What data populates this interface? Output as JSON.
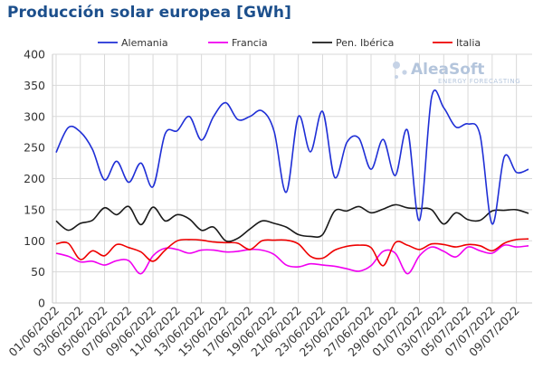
{
  "chart_data": {
    "type": "line",
    "title": "Producción solar europea [GWh]",
    "ylim": [
      0,
      400
    ],
    "yticks": [
      0,
      50,
      100,
      150,
      200,
      250,
      300,
      350,
      400
    ],
    "grid": true,
    "legend_position": "top",
    "x": [
      "01/06/2022",
      "02/06/2022",
      "03/06/2022",
      "04/06/2022",
      "05/06/2022",
      "06/06/2022",
      "07/06/2022",
      "08/06/2022",
      "09/06/2022",
      "10/06/2022",
      "11/06/2022",
      "12/06/2022",
      "13/06/2022",
      "14/06/2022",
      "15/06/2022",
      "16/06/2022",
      "17/06/2022",
      "18/06/2022",
      "19/06/2022",
      "20/06/2022",
      "21/06/2022",
      "22/06/2022",
      "23/06/2022",
      "24/06/2022",
      "25/06/2022",
      "26/06/2022",
      "27/06/2022",
      "28/06/2022",
      "29/06/2022",
      "30/06/2022",
      "01/07/2022",
      "02/07/2022",
      "03/07/2022",
      "04/07/2022",
      "05/07/2022",
      "06/07/2022",
      "07/07/2022",
      "08/07/2022",
      "09/07/2022",
      "10/07/2022"
    ],
    "x_tick_labels": [
      "01/06/2022",
      "03/06/2022",
      "05/06/2022",
      "07/06/2022",
      "09/06/2022",
      "11/06/2022",
      "13/06/2022",
      "15/06/2022",
      "17/06/2022",
      "19/06/2022",
      "21/06/2022",
      "23/06/2022",
      "25/06/2022",
      "27/06/2022",
      "29/06/2022",
      "01/07/2022",
      "03/07/2022",
      "05/07/2022",
      "07/07/2022",
      "09/07/2022"
    ],
    "series": [
      {
        "name": "Alemania",
        "color": "#1f2fd6",
        "values": [
          242,
          282,
          275,
          247,
          198,
          228,
          194,
          225,
          187,
          272,
          277,
          300,
          262,
          300,
          322,
          295,
          300,
          309,
          276,
          178,
          300,
          243,
          308,
          202,
          258,
          265,
          215,
          263,
          205,
          278,
          133,
          331,
          314,
          283,
          288,
          270,
          127,
          235,
          210,
          215
        ]
      },
      {
        "name": "Francia",
        "color": "#f000f0",
        "values": [
          80,
          75,
          66,
          67,
          61,
          68,
          68,
          47,
          76,
          88,
          86,
          80,
          85,
          85,
          82,
          83,
          86,
          85,
          78,
          61,
          58,
          63,
          61,
          59,
          55,
          51,
          60,
          83,
          80,
          47,
          76,
          90,
          83,
          74,
          90,
          84,
          80,
          93,
          90,
          92
        ]
      },
      {
        "name": "Pen. Ibérica",
        "color": "#1a1a1a",
        "values": [
          132,
          117,
          128,
          133,
          153,
          142,
          155,
          126,
          154,
          132,
          142,
          135,
          117,
          122,
          100,
          104,
          119,
          132,
          128,
          122,
          110,
          107,
          110,
          148,
          148,
          155,
          145,
          151,
          158,
          153,
          152,
          150,
          127,
          145,
          134,
          133,
          148,
          149,
          150,
          144
        ]
      },
      {
        "name": "Italia",
        "color": "#ee0000",
        "values": [
          95,
          96,
          70,
          84,
          76,
          94,
          89,
          82,
          67,
          85,
          100,
          102,
          101,
          98,
          97,
          96,
          86,
          100,
          101,
          101,
          95,
          75,
          72,
          85,
          91,
          93,
          89,
          60,
          97,
          93,
          86,
          95,
          94,
          90,
          94,
          92,
          84,
          96,
          102,
          103
        ]
      }
    ]
  },
  "watermark": {
    "name": "AleaSoft",
    "subtitle": "ENERGY FORECASTING"
  }
}
